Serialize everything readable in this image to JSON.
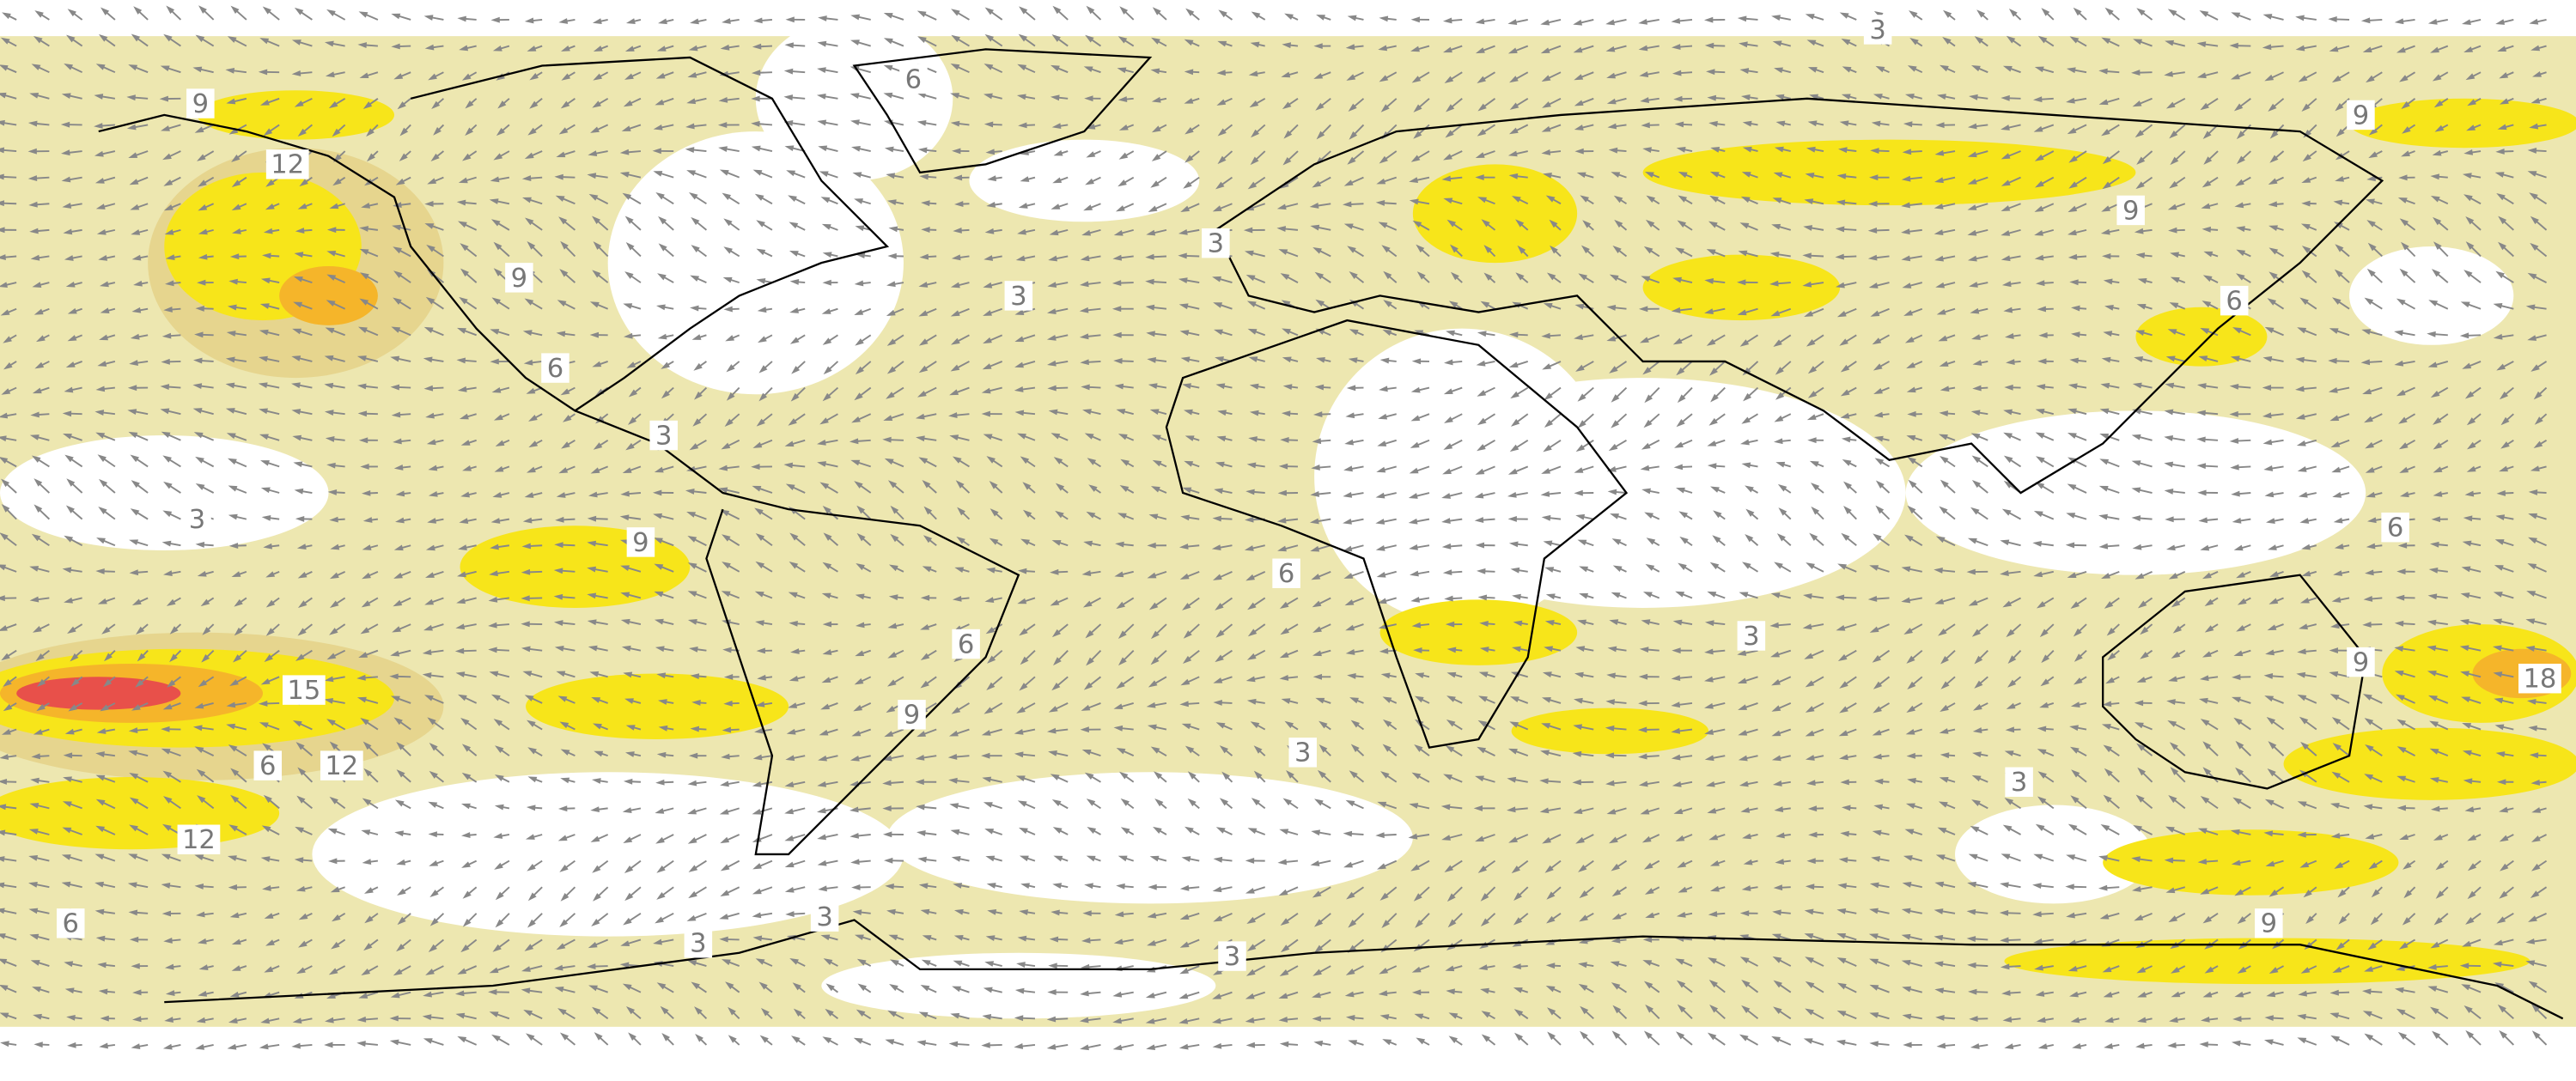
{
  "contour_labels": [
    "3",
    "6",
    "9",
    "12",
    "9",
    "9",
    "9",
    "3",
    "3",
    "6",
    "6",
    "3",
    "3",
    "9",
    "6",
    "6",
    "3",
    "6",
    "9",
    "18",
    "15",
    "9",
    "3",
    "6",
    "12",
    "3",
    "12",
    "9",
    "6",
    "3",
    "3",
    "3"
  ]
}
